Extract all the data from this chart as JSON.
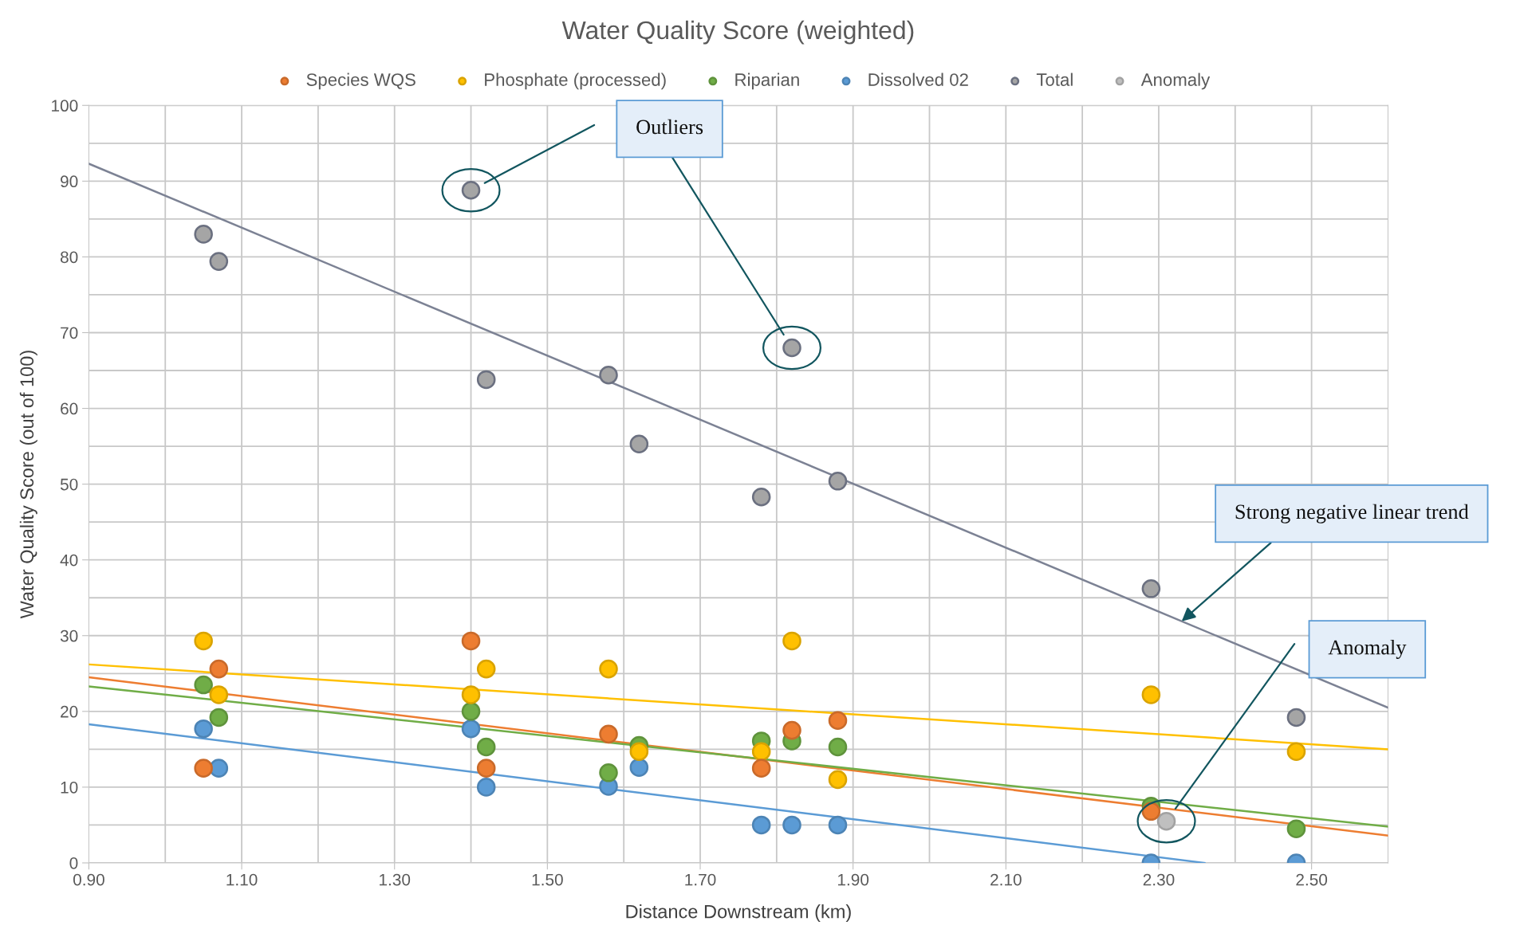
{
  "chart_data": {
    "type": "scatter",
    "title": "Water Quality Score (weighted)",
    "xlabel": "Distance Downstream (km)",
    "ylabel": "Water Quality Score (out of 100)",
    "x": [
      1.05,
      1.07,
      1.4,
      1.42,
      1.58,
      1.62,
      1.78,
      1.82,
      1.88,
      2.29,
      2.48
    ],
    "series": [
      {
        "name": "Species WQS",
        "color": "#ed7d31",
        "values": [
          12.5,
          25.6,
          29.3,
          12.5,
          17.0,
          null,
          12.5,
          17.5,
          18.8,
          6.8,
          null
        ]
      },
      {
        "name": "Phosphate (processed)",
        "color": "#ffc000",
        "values": [
          29.3,
          22.2,
          22.2,
          25.6,
          25.6,
          14.7,
          14.7,
          29.3,
          11.0,
          22.2,
          14.7
        ]
      },
      {
        "name": "Riparian",
        "color": "#70ad47",
        "values": [
          23.5,
          19.2,
          20.0,
          15.3,
          11.9,
          15.5,
          16.1,
          16.1,
          15.3,
          7.5,
          4.5
        ]
      },
      {
        "name": "Dissolved 02",
        "color": "#5b9bd5",
        "values": [
          17.7,
          12.5,
          17.7,
          10.0,
          10.1,
          12.6,
          5.0,
          5.0,
          5.0,
          0,
          0
        ]
      },
      {
        "name": "Total",
        "color": "#a5a5a5",
        "values": [
          83.0,
          79.4,
          88.8,
          63.8,
          64.4,
          55.3,
          48.3,
          68.0,
          50.4,
          36.2,
          19.2
        ]
      },
      {
        "name": "Anomaly",
        "color": "#bfbfbf",
        "x": [
          2.31
        ],
        "values": [
          5.5
        ]
      },
      {
        "type": "line",
        "marker": "none",
        "color": "#ed7d31",
        "x": [
          0.9,
          2.6
        ],
        "values": [
          24.5,
          3.6
        ]
      },
      {
        "type": "line",
        "marker": "none",
        "color": "#ffc000",
        "x": [
          0.9,
          2.6
        ],
        "values": [
          26.2,
          15.0
        ]
      },
      {
        "type": "line",
        "marker": "none",
        "color": "#70ad47",
        "x": [
          0.9,
          2.6
        ],
        "values": [
          23.3,
          4.8
        ]
      },
      {
        "type": "line",
        "marker": "none",
        "color": "#5b9bd5",
        "x": [
          0.9,
          2.36
        ],
        "values": [
          18.3,
          0
        ]
      },
      {
        "type": "line",
        "marker": "none",
        "color": "#7c8294",
        "x": [
          0.9,
          2.6
        ],
        "values": [
          92.3,
          20.5
        ]
      }
    ],
    "xlim": [
      0.9,
      2.6
    ],
    "ylim": [
      0,
      100
    ],
    "xticks": [
      {
        "value": 0.9,
        "label": "0.90"
      },
      {
        "value": 1.1,
        "label": "1.10"
      },
      {
        "value": 1.3,
        "label": "1.30"
      },
      {
        "value": 1.5,
        "label": "1.50"
      },
      {
        "value": 1.7,
        "label": "1.70"
      },
      {
        "value": 1.9,
        "label": "1.90"
      },
      {
        "value": 2.1,
        "label": "2.10"
      },
      {
        "value": 2.3,
        "label": "2.30"
      },
      {
        "value": 2.5,
        "label": "2.50"
      }
    ],
    "yticks": [
      0,
      10,
      20,
      30,
      40,
      50,
      60,
      70,
      80,
      90,
      100
    ],
    "grid": true,
    "legend": "top",
    "marker": "circle",
    "annotations": [
      "Outliers",
      {
        "text": "Strong negative linear trend",
        "x": 2.33,
        "y": 31.9
      },
      "Anomaly"
    ]
  }
}
